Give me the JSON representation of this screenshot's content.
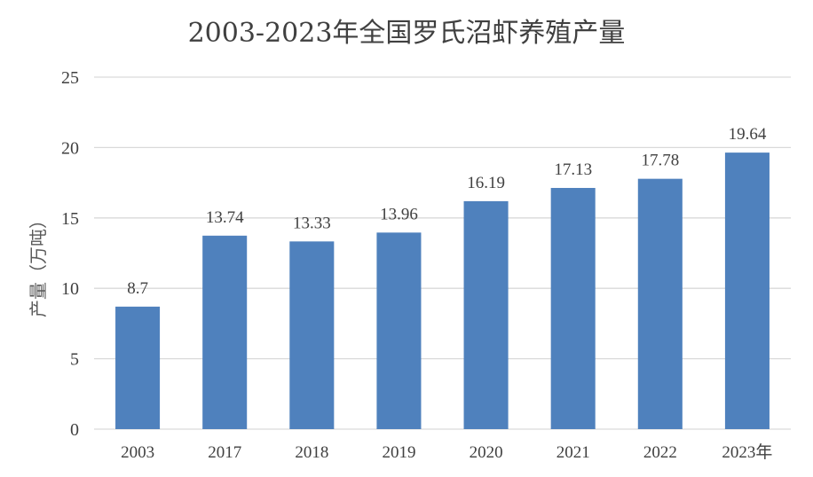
{
  "chart_data": {
    "type": "bar",
    "title": "2003-2023年全国罗氏沼虾养殖产量",
    "xlabel": "",
    "ylabel": "产量（万吨）",
    "categories": [
      "2003",
      "2017",
      "2018",
      "2019",
      "2020",
      "2021",
      "2022",
      "2023年"
    ],
    "values": [
      8.7,
      13.74,
      13.33,
      13.96,
      16.19,
      17.13,
      17.78,
      19.64
    ],
    "data_labels": [
      "8.7",
      "13.74",
      "13.33",
      "13.96",
      "16.19",
      "17.13",
      "17.78",
      "19.64"
    ],
    "ylim": [
      0,
      25
    ],
    "yticks": [
      0,
      5,
      10,
      15,
      20,
      25
    ],
    "grid": true,
    "legend": "none",
    "bar_color": "#4F81BD",
    "grid_color": "#D9D9D9"
  }
}
